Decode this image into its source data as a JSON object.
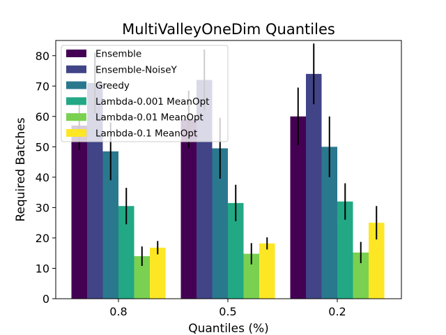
{
  "chart_data": {
    "type": "bar",
    "title": "MultiValleyOneDim Quantiles",
    "xlabel": "Quantiles (%)",
    "ylabel": "Required Batches",
    "categories": [
      "0.8",
      "0.5",
      "0.2"
    ],
    "ylim": [
      0,
      85
    ],
    "yticks": [
      0,
      10,
      20,
      30,
      40,
      50,
      60,
      70,
      80
    ],
    "grid": false,
    "legend_position": "upper-left",
    "series": [
      {
        "name": "Ensemble",
        "color": "#440154",
        "values": [
          57,
          59,
          60
        ],
        "errors": [
          8,
          9.5,
          9.5
        ]
      },
      {
        "name": "Ensemble-NoiseY",
        "color": "#414487",
        "values": [
          71,
          72,
          74
        ],
        "errors": [
          10,
          10,
          10
        ]
      },
      {
        "name": "Greedy",
        "color": "#2a788e",
        "values": [
          48.5,
          49.5,
          50
        ],
        "errors": [
          9.5,
          10,
          10
        ]
      },
      {
        "name": "Lambda-0.001 MeanOpt",
        "color": "#22a884",
        "values": [
          30.5,
          31.5,
          32
        ],
        "errors": [
          6,
          6,
          6
        ]
      },
      {
        "name": "Lambda-0.01 MeanOpt",
        "color": "#7ad151",
        "values": [
          14,
          14.8,
          15.2
        ],
        "errors": [
          3.2,
          3.5,
          3.5
        ]
      },
      {
        "name": "Lambda-0.1 MeanOpt",
        "color": "#fde725",
        "values": [
          16.8,
          18.2,
          25
        ],
        "errors": [
          2.2,
          2,
          5.5
        ]
      }
    ]
  }
}
